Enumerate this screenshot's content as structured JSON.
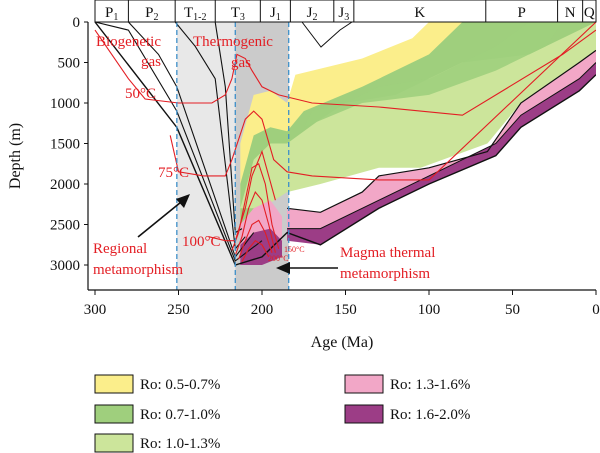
{
  "chart_data": {
    "type": "area",
    "title": "",
    "xlabel": "Age (Ma)",
    "ylabel": "Depth (m)",
    "xlim": [
      300,
      0
    ],
    "ylim": [
      3300,
      0
    ],
    "x_ticks": [
      300,
      250,
      200,
      150,
      100,
      50,
      0
    ],
    "y_ticks": [
      0,
      500,
      1000,
      1500,
      2000,
      2500,
      3000
    ],
    "grid": false,
    "periods": [
      {
        "label": "P",
        "sub": "1",
        "start": 300,
        "end": 280
      },
      {
        "label": "P",
        "sub": "2",
        "start": 280,
        "end": 252
      },
      {
        "label": "T",
        "sub": "1-2",
        "start": 252,
        "end": 228
      },
      {
        "label": "T",
        "sub": "3",
        "start": 228,
        "end": 201
      },
      {
        "label": "J",
        "sub": "1",
        "start": 201,
        "end": 183
      },
      {
        "label": "J",
        "sub": "2",
        "start": 183,
        "end": 157
      },
      {
        "label": "J",
        "sub": "3",
        "start": 157,
        "end": 145
      },
      {
        "label": "K",
        "sub": "",
        "start": 145,
        "end": 66
      },
      {
        "label": "P",
        "sub": "",
        "start": 66,
        "end": 23
      },
      {
        "label": "N",
        "sub": "",
        "start": 23,
        "end": 8
      },
      {
        "label": "Q",
        "sub": "",
        "start": 8,
        "end": 0
      }
    ],
    "series": [
      {
        "name": "Ro: 0.5-0.7%",
        "color": "#fbee8b"
      },
      {
        "name": "Ro: 0.7-1.0%",
        "color": "#9fcf7d"
      },
      {
        "name": "Ro: 1.0-1.3%",
        "color": "#cce59b"
      },
      {
        "name": "Ro: 1.3-1.6%",
        "color": "#f2a7c7"
      },
      {
        "name": "Ro: 1.6-2.0%",
        "color": "#9c3d86"
      }
    ],
    "annotations": {
      "biogenic_gas": "Biogenetic gas",
      "thermogenic_gas": "Thermogenic gas",
      "t50": "50°C",
      "t75": "75°C",
      "t100": "100°C",
      "t150": "150°C",
      "t200": "200°C",
      "regional": "Regional metamorphism",
      "magma": "Magma thermal metamorphism"
    }
  }
}
